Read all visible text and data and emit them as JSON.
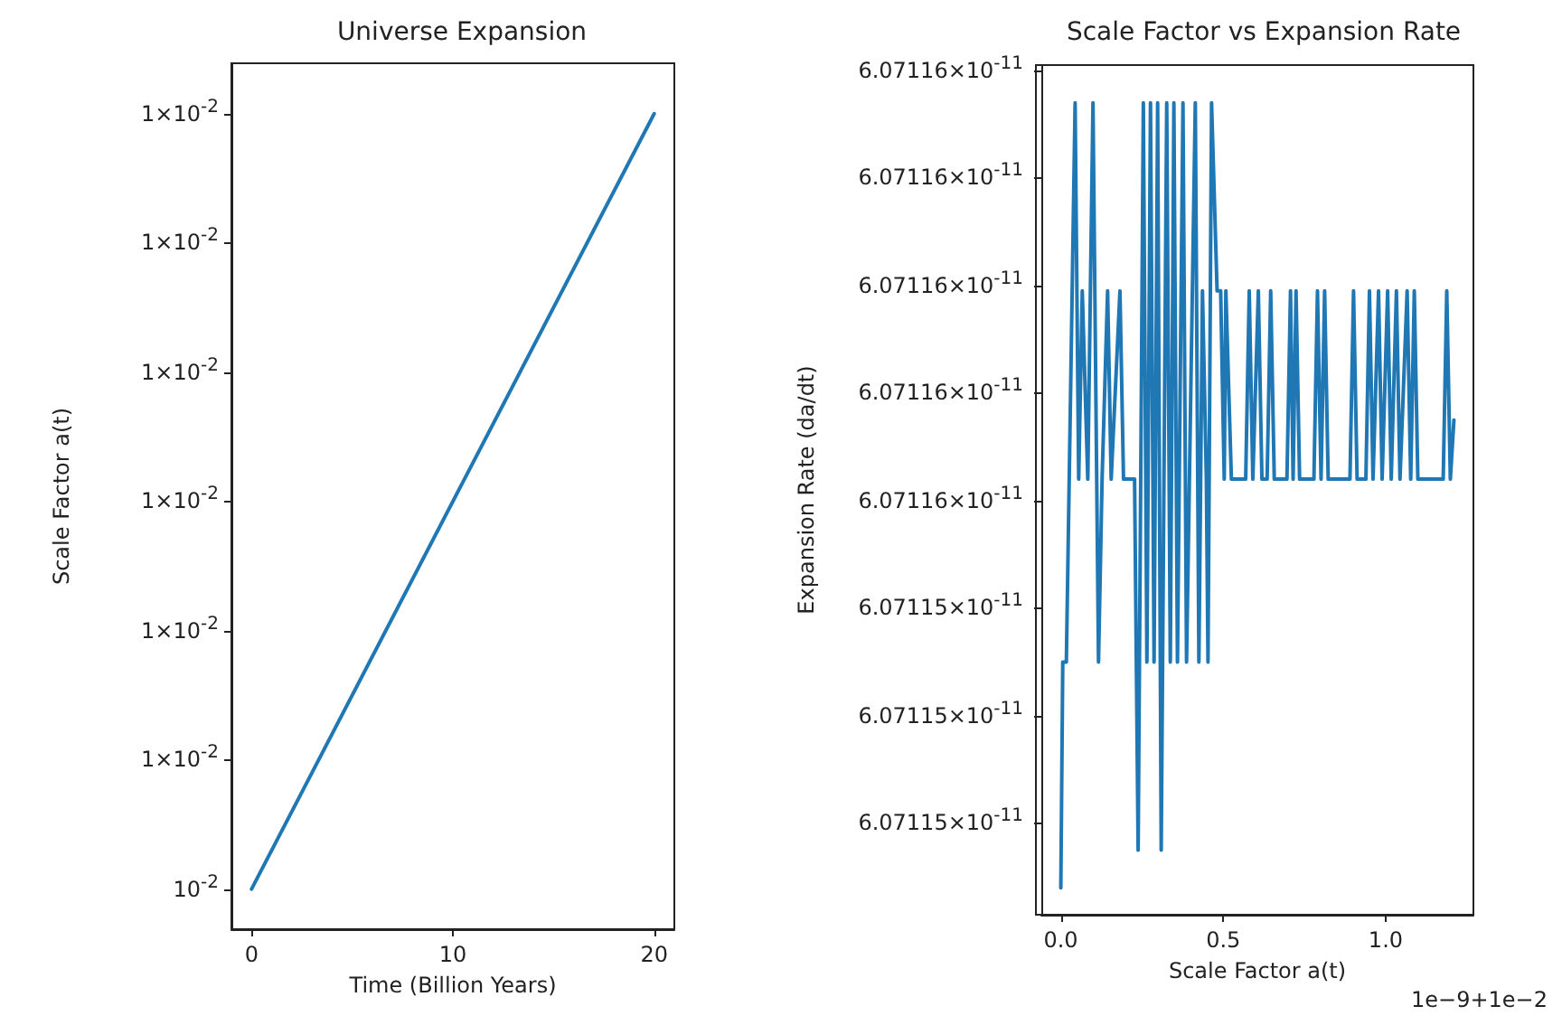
{
  "chart_data": [
    {
      "type": "line",
      "title": "Universe Expansion",
      "xlabel": "Time (Billion Years)",
      "ylabel": "Scale Factor a(t)",
      "grid": false,
      "marker": "none",
      "line_style": "solid",
      "x": [
        0,
        20
      ],
      "series": [
        {
          "color": "#1f77b4",
          "values": [
            0.01,
            0.0100000012
          ]
        }
      ],
      "xlim": [
        -1.0,
        21.0
      ],
      "xticks": [
        0,
        10,
        20
      ],
      "ylim": [
        0.009999999938,
        0.010000001278
      ],
      "yticks": [
        {
          "value": 0.01,
          "label": "10$^{-2}$"
        },
        {
          "value": 0.0100000002,
          "label": "1×10$^{-2}$"
        },
        {
          "value": 0.0100000004,
          "label": "1×10$^{-2}$"
        },
        {
          "value": 0.0100000006,
          "label": "1×10$^{-2}$"
        },
        {
          "value": 0.0100000008,
          "label": "1×10$^{-2}$"
        },
        {
          "value": 0.010000001,
          "label": "1×10$^{-2}$"
        },
        {
          "value": 0.0100000012,
          "label": "1×10$^{-2}$"
        }
      ]
    },
    {
      "type": "line",
      "title": "Scale Factor vs Expansion Rate",
      "xlabel": "Scale Factor a(t)",
      "ylabel": "Expansion Rate (da/dt)",
      "grid": false,
      "marker": "none",
      "line_style": "solid",
      "annotations": [
        "1e−9+1e−2"
      ],
      "x": [
        0,
        0.006,
        0.017,
        0.044,
        0.055,
        0.066,
        0.083,
        0.099,
        0.116,
        0.127,
        0.144,
        0.155,
        0.182,
        0.193,
        0.227,
        0.238,
        0.254,
        0.265,
        0.276,
        0.287,
        0.298,
        0.309,
        0.326,
        0.337,
        0.348,
        0.359,
        0.376,
        0.387,
        0.414,
        0.425,
        0.436,
        0.448,
        0.453,
        0.464,
        0.481,
        0.492,
        0.503,
        0.508,
        0.525,
        0.569,
        0.58,
        0.591,
        0.608,
        0.619,
        0.635,
        0.646,
        0.657,
        0.696,
        0.707,
        0.715,
        0.724,
        0.735,
        0.779,
        0.79,
        0.801,
        0.812,
        0.823,
        0.89,
        0.901,
        0.912,
        0.939,
        0.95,
        0.961,
        0.978,
        0.989,
        1.006,
        1.017,
        1.033,
        1.044,
        1.066,
        1.077,
        1.088,
        1.099,
        1.177,
        1.188,
        1.199,
        1.21
      ],
      "series": [
        {
          "color": "#1f77b4",
          "values": [
            6.07115438e-11,
            6.0711548e-11,
            6.0711548e-11,
            6.07115584e-11,
            6.07115514e-11,
            6.07115549e-11,
            6.07115514e-11,
            6.07115584e-11,
            6.0711548e-11,
            6.07115514e-11,
            6.07115549e-11,
            6.07115514e-11,
            6.07115549e-11,
            6.07115514e-11,
            6.07115514e-11,
            6.07115445e-11,
            6.07115584e-11,
            6.0711548e-11,
            6.07115584e-11,
            6.0711548e-11,
            6.07115584e-11,
            6.07115445e-11,
            6.07115584e-11,
            6.0711548e-11,
            6.07115584e-11,
            6.0711548e-11,
            6.07115584e-11,
            6.0711548e-11,
            6.07115584e-11,
            6.0711548e-11,
            6.07115549e-11,
            6.07115514e-11,
            6.0711548e-11,
            6.07115584e-11,
            6.07115549e-11,
            6.07115549e-11,
            6.07115514e-11,
            6.07115549e-11,
            6.07115514e-11,
            6.07115514e-11,
            6.07115549e-11,
            6.07115514e-11,
            6.07115549e-11,
            6.07115514e-11,
            6.07115514e-11,
            6.07115549e-11,
            6.07115514e-11,
            6.07115514e-11,
            6.07115549e-11,
            6.07115514e-11,
            6.07115549e-11,
            6.07115514e-11,
            6.07115514e-11,
            6.07115549e-11,
            6.07115514e-11,
            6.07115549e-11,
            6.07115514e-11,
            6.07115514e-11,
            6.07115549e-11,
            6.07115514e-11,
            6.07115514e-11,
            6.07115549e-11,
            6.07115514e-11,
            6.07115549e-11,
            6.07115514e-11,
            6.07115549e-11,
            6.07115514e-11,
            6.07115549e-11,
            6.07115514e-11,
            6.07115549e-11,
            6.07115514e-11,
            6.07115549e-11,
            6.07115514e-11,
            6.07115514e-11,
            6.07115549e-11,
            6.07115514e-11,
            6.07115525e-11
          ]
        }
      ],
      "xlim": [
        -0.06,
        1.27
      ],
      "xticks": [
        {
          "value": 0,
          "label": "0.0"
        },
        {
          "value": 0.5,
          "label": "0.5"
        },
        {
          "value": 1,
          "label": "1.0"
        }
      ],
      "ylim": [
        6.07115433e-11,
        6.07115591e-11
      ],
      "yticks": [
        {
          "value": 6.0711545e-11,
          "label": "6.07115×10$^{-11}$"
        },
        {
          "value": 6.0711547e-11,
          "label": "6.07115×10$^{-11}$"
        },
        {
          "value": 6.0711549e-11,
          "label": "6.07115×10$^{-11}$"
        },
        {
          "value": 6.0711551e-11,
          "label": "6.07116×10$^{-11}$"
        },
        {
          "value": 6.0711553e-11,
          "label": "6.07116×10$^{-11}$"
        },
        {
          "value": 6.0711555e-11,
          "label": "6.07116×10$^{-11}$"
        },
        {
          "value": 6.0711557e-11,
          "label": "6.07116×10$^{-11}$"
        },
        {
          "value": 6.0711559e-11,
          "label": "6.07116×10$^{-11}$"
        }
      ]
    }
  ]
}
